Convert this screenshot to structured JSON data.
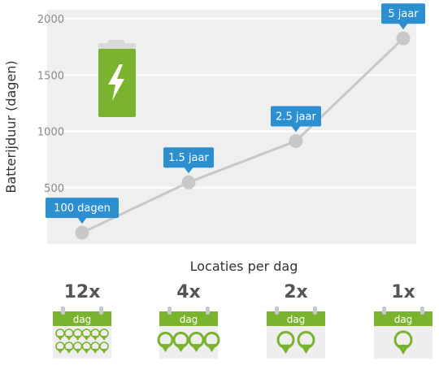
{
  "chart_data": {
    "type": "line",
    "ylabel": "Batterijduur (dagen)",
    "xlabel": "Locaties per dag",
    "ylim": [
      0,
      2000
    ],
    "yticks": [
      500,
      1000,
      1500,
      2000
    ],
    "grid": true,
    "x": [
      "12x",
      "4x",
      "2x",
      "1x"
    ],
    "values": [
      100,
      547,
      913,
      1825
    ],
    "data_labels": [
      "100 dagen",
      "1.5 jaar",
      "2.5 jaar",
      "5 jaar"
    ],
    "calendar_label": "dag",
    "pins_per_calendar": [
      12,
      4,
      2,
      1
    ]
  },
  "colors": {
    "plot_bg": "#efefef",
    "grid": "#ffffff",
    "line": "#c8c8c8",
    "point": "#c8c8c8",
    "callout": "#2b8fd0",
    "green": "#7ab32e",
    "battery_cap": "#d9d9d9",
    "calendar_bg": "#eeeeee",
    "calendar_ring": "#c8c8c8"
  },
  "icons": {
    "battery": "battery-charging-icon",
    "calendar": "calendar-icon",
    "pin": "location-pin-icon"
  }
}
